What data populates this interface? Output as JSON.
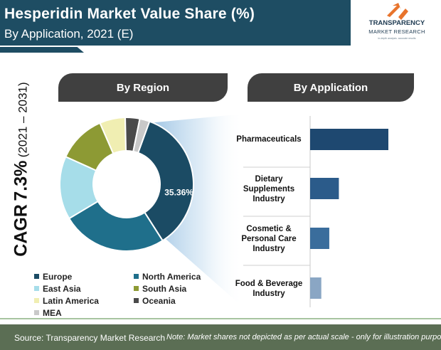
{
  "header": {
    "title": "Hesperidin Market Value Share (%)",
    "subtitle": "By Application, 2021 (E)"
  },
  "logo": {
    "name": "TRANSPARENCY",
    "sub": "MARKET RESEARCH",
    "tagline": "in-depth analysis. accurate results"
  },
  "cagr": {
    "label": "CAGR",
    "value": "7.3%",
    "period": "(2021 – 2031)"
  },
  "tabs": {
    "region": "By Region",
    "application": "By Application"
  },
  "colors": {
    "europe": "#1b4b64",
    "north_america": "#1f6f8b",
    "east_asia": "#a6dde9",
    "south_asia": "#8d9a34",
    "latin_america": "#f0eeb2",
    "oceania": "#4a4a4a",
    "mea": "#c9c9c9",
    "bar": "#1e4870"
  },
  "chart_data": [
    {
      "type": "pie",
      "variant": "donut",
      "categories": [
        "Europe",
        "North America",
        "East Asia",
        "South Asia",
        "Latin America",
        "Oceania",
        "MEA"
      ],
      "values": [
        35.36,
        25.5,
        15.3,
        11.7,
        6.2,
        3.5,
        2.4
      ],
      "data_labels": [
        "35.36%",
        "",
        "",
        "",
        "",
        "",
        ""
      ],
      "legend": [
        {
          "label": "Europe",
          "color_key": "europe"
        },
        {
          "label": "North America",
          "color_key": "north_america"
        },
        {
          "label": "East Asia",
          "color_key": "east_asia"
        },
        {
          "label": "South Asia",
          "color_key": "south_asia"
        },
        {
          "label": "Latin America",
          "color_key": "latin_america"
        },
        {
          "label": "Oceania",
          "color_key": "oceania"
        },
        {
          "label": "MEA",
          "color_key": "mea"
        }
      ],
      "legend_position": "bottom"
    },
    {
      "type": "bar",
      "orientation": "horizontal",
      "categories": [
        [
          "Pharmaceuticals"
        ],
        [
          "Dietary",
          "Supplements",
          "Industry"
        ],
        [
          "Cosmetic &",
          "Personal Care",
          "Industry"
        ],
        [
          "Food & Beverage",
          "Industry"
        ]
      ],
      "values": [
        49,
        18,
        12,
        7
      ],
      "value_units": "relative share (not to scale)",
      "grid": false
    }
  ],
  "footer": {
    "source": "Source: Transparency Market Research",
    "note": "Note: Market shares not depicted as per actual scale - only for illustration purposes"
  }
}
